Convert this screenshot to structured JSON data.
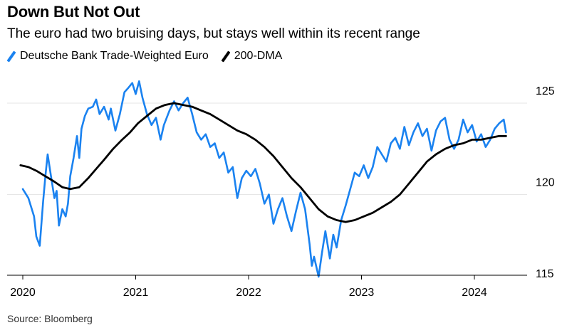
{
  "title": "Down But Not Out",
  "subtitle": "The euro had two bruising days, but stays well within its recent range",
  "source": "Source: Bloomberg",
  "chart_data": {
    "type": "line",
    "ylim": [
      114.5,
      126.5
    ],
    "xlim": [
      2019.95,
      2024.4
    ],
    "y_ticks": [
      {
        "value": 125,
        "label": "125"
      },
      {
        "value": 120,
        "label": "120"
      },
      {
        "value": 115,
        "label": "115"
      }
    ],
    "x_ticks": [
      {
        "value": 2020,
        "label": "2020"
      },
      {
        "value": 2021,
        "label": "2021"
      },
      {
        "value": 2022,
        "label": "2022"
      },
      {
        "value": 2023,
        "label": "2023"
      },
      {
        "value": 2024,
        "label": "2024"
      }
    ],
    "grid": "horizontal",
    "legend_position": "top-left",
    "series": [
      {
        "name": "Deutsche Bank Trade-Weighted Euro",
        "color": "#1a82f0",
        "points": [
          [
            2020.0,
            120.3
          ],
          [
            2020.05,
            119.8
          ],
          [
            2020.1,
            118.8
          ],
          [
            2020.12,
            117.7
          ],
          [
            2020.15,
            117.2
          ],
          [
            2020.18,
            119.6
          ],
          [
            2020.2,
            121.0
          ],
          [
            2020.22,
            122.2
          ],
          [
            2020.25,
            121.0
          ],
          [
            2020.28,
            119.8
          ],
          [
            2020.3,
            120.2
          ],
          [
            2020.32,
            118.3
          ],
          [
            2020.35,
            119.2
          ],
          [
            2020.38,
            118.8
          ],
          [
            2020.4,
            119.5
          ],
          [
            2020.42,
            121.0
          ],
          [
            2020.45,
            122.0
          ],
          [
            2020.48,
            123.2
          ],
          [
            2020.5,
            122.0
          ],
          [
            2020.52,
            123.6
          ],
          [
            2020.55,
            124.3
          ],
          [
            2020.58,
            124.7
          ],
          [
            2020.62,
            124.8
          ],
          [
            2020.65,
            125.2
          ],
          [
            2020.68,
            124.4
          ],
          [
            2020.72,
            124.8
          ],
          [
            2020.76,
            124.1
          ],
          [
            2020.78,
            124.7
          ],
          [
            2020.82,
            123.5
          ],
          [
            2020.86,
            124.4
          ],
          [
            2020.9,
            125.6
          ],
          [
            2020.93,
            125.8
          ],
          [
            2020.97,
            126.1
          ],
          [
            2021.0,
            125.5
          ],
          [
            2021.03,
            126.2
          ],
          [
            2021.06,
            125.3
          ],
          [
            2021.1,
            124.4
          ],
          [
            2021.14,
            123.8
          ],
          [
            2021.18,
            124.2
          ],
          [
            2021.22,
            123.0
          ],
          [
            2021.25,
            123.8
          ],
          [
            2021.3,
            124.6
          ],
          [
            2021.34,
            125.1
          ],
          [
            2021.38,
            124.6
          ],
          [
            2021.42,
            125.0
          ],
          [
            2021.46,
            125.3
          ],
          [
            2021.5,
            124.4
          ],
          [
            2021.54,
            123.4
          ],
          [
            2021.58,
            123.0
          ],
          [
            2021.62,
            123.3
          ],
          [
            2021.66,
            122.6
          ],
          [
            2021.7,
            122.8
          ],
          [
            2021.74,
            122.0
          ],
          [
            2021.78,
            122.3
          ],
          [
            2021.82,
            121.2
          ],
          [
            2021.86,
            121.5
          ],
          [
            2021.9,
            119.8
          ],
          [
            2021.94,
            120.9
          ],
          [
            2021.98,
            121.3
          ],
          [
            2022.02,
            121.0
          ],
          [
            2022.06,
            121.4
          ],
          [
            2022.1,
            120.6
          ],
          [
            2022.14,
            119.5
          ],
          [
            2022.18,
            120.0
          ],
          [
            2022.22,
            118.4
          ],
          [
            2022.26,
            119.2
          ],
          [
            2022.3,
            119.8
          ],
          [
            2022.34,
            118.8
          ],
          [
            2022.38,
            118.0
          ],
          [
            2022.42,
            119.1
          ],
          [
            2022.46,
            120.1
          ],
          [
            2022.5,
            119.2
          ],
          [
            2022.54,
            117.3
          ],
          [
            2022.56,
            116.1
          ],
          [
            2022.58,
            116.6
          ],
          [
            2022.62,
            115.5
          ],
          [
            2022.65,
            116.8
          ],
          [
            2022.68,
            118.0
          ],
          [
            2022.72,
            116.5
          ],
          [
            2022.75,
            117.8
          ],
          [
            2022.78,
            117.1
          ],
          [
            2022.82,
            118.6
          ],
          [
            2022.86,
            119.4
          ],
          [
            2022.9,
            120.3
          ],
          [
            2022.94,
            121.2
          ],
          [
            2022.98,
            121.0
          ],
          [
            2023.02,
            121.6
          ],
          [
            2023.06,
            120.9
          ],
          [
            2023.1,
            121.5
          ],
          [
            2023.14,
            122.6
          ],
          [
            2023.18,
            122.2
          ],
          [
            2023.22,
            121.8
          ],
          [
            2023.26,
            122.8
          ],
          [
            2023.3,
            123.1
          ],
          [
            2023.34,
            122.5
          ],
          [
            2023.38,
            123.7
          ],
          [
            2023.42,
            122.7
          ],
          [
            2023.46,
            123.4
          ],
          [
            2023.5,
            123.9
          ],
          [
            2023.54,
            123.2
          ],
          [
            2023.58,
            123.6
          ],
          [
            2023.62,
            122.4
          ],
          [
            2023.66,
            123.5
          ],
          [
            2023.7,
            124.0
          ],
          [
            2023.74,
            124.2
          ],
          [
            2023.78,
            123.0
          ],
          [
            2023.82,
            122.5
          ],
          [
            2023.86,
            123.0
          ],
          [
            2023.9,
            124.1
          ],
          [
            2023.94,
            123.4
          ],
          [
            2023.98,
            123.8
          ],
          [
            2024.02,
            122.9
          ],
          [
            2024.06,
            123.3
          ],
          [
            2024.1,
            122.6
          ],
          [
            2024.14,
            123.0
          ],
          [
            2024.18,
            123.6
          ],
          [
            2024.22,
            123.9
          ],
          [
            2024.26,
            124.1
          ],
          [
            2024.28,
            123.4
          ]
        ]
      },
      {
        "name": "200-DMA",
        "color": "#000000",
        "points": [
          [
            2019.98,
            121.6
          ],
          [
            2020.05,
            121.5
          ],
          [
            2020.12,
            121.3
          ],
          [
            2020.2,
            121.0
          ],
          [
            2020.28,
            120.7
          ],
          [
            2020.35,
            120.4
          ],
          [
            2020.42,
            120.3
          ],
          [
            2020.5,
            120.4
          ],
          [
            2020.58,
            120.9
          ],
          [
            2020.65,
            121.4
          ],
          [
            2020.72,
            121.9
          ],
          [
            2020.8,
            122.5
          ],
          [
            2020.88,
            123.0
          ],
          [
            2020.95,
            123.4
          ],
          [
            2021.02,
            123.9
          ],
          [
            2021.1,
            124.3
          ],
          [
            2021.18,
            124.7
          ],
          [
            2021.26,
            124.9
          ],
          [
            2021.34,
            125.0
          ],
          [
            2021.42,
            124.9
          ],
          [
            2021.5,
            124.8
          ],
          [
            2021.58,
            124.6
          ],
          [
            2021.66,
            124.4
          ],
          [
            2021.74,
            124.1
          ],
          [
            2021.82,
            123.8
          ],
          [
            2021.9,
            123.5
          ],
          [
            2021.98,
            123.3
          ],
          [
            2022.06,
            123.0
          ],
          [
            2022.14,
            122.6
          ],
          [
            2022.22,
            122.1
          ],
          [
            2022.3,
            121.5
          ],
          [
            2022.38,
            120.9
          ],
          [
            2022.46,
            120.4
          ],
          [
            2022.54,
            119.8
          ],
          [
            2022.62,
            119.2
          ],
          [
            2022.7,
            118.8
          ],
          [
            2022.78,
            118.6
          ],
          [
            2022.86,
            118.5
          ],
          [
            2022.94,
            118.6
          ],
          [
            2023.02,
            118.8
          ],
          [
            2023.1,
            119.0
          ],
          [
            2023.18,
            119.3
          ],
          [
            2023.26,
            119.6
          ],
          [
            2023.34,
            120.0
          ],
          [
            2023.42,
            120.6
          ],
          [
            2023.5,
            121.2
          ],
          [
            2023.58,
            121.8
          ],
          [
            2023.66,
            122.2
          ],
          [
            2023.74,
            122.5
          ],
          [
            2023.82,
            122.7
          ],
          [
            2023.9,
            122.8
          ],
          [
            2023.98,
            123.0
          ],
          [
            2024.06,
            123.0
          ],
          [
            2024.14,
            123.1
          ],
          [
            2024.22,
            123.2
          ],
          [
            2024.28,
            123.2
          ]
        ]
      }
    ]
  }
}
